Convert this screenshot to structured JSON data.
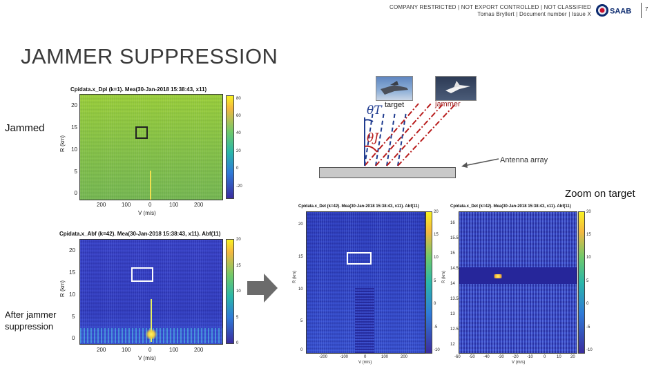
{
  "header": {
    "line1": "COMPANY RESTRICTED | NOT EXPORT CONTROLLED | NOT CLASSIFIED",
    "line2": "Tomas Bryllert | Document number | Issue X",
    "brand": "SAAB",
    "page_number": "7"
  },
  "title": "JAMMER SUPPRESSION",
  "labels": {
    "jammed": "Jammed",
    "after": "After jammer suppression",
    "zoom": "Zoom on target"
  },
  "geometry_diagram": {
    "target_label": "target",
    "jammer_label": "jammer",
    "theta_t": "θT",
    "theta_j": "θJ",
    "antenna_label": "Antenna array"
  },
  "plots": {
    "dpl": {
      "title": "Cpidata.x_Dpl (k=1).   Mea(30-Jan-2018 15:38:43, x11)",
      "ylabel": "R (km)",
      "xlabel": "V (m/s)",
      "yticks": [
        "20",
        "15",
        "10",
        "5",
        "0"
      ],
      "xticks": [
        "200",
        "100",
        "0",
        "100",
        "200"
      ],
      "cticks": [
        "60",
        "40",
        "20",
        "0",
        "-20"
      ],
      "cticks_top": "80"
    },
    "abf": {
      "title": "Cpidata.x_Abf (k=42).   Mea(30-Jan-2018 15:38:43, x11). Abf(11)",
      "ylabel": "R (km)",
      "xlabel": "V (m/s)",
      "yticks": [
        "20",
        "15",
        "10",
        "5",
        "0"
      ],
      "xticks": [
        "200",
        "100",
        "0",
        "100",
        "200"
      ],
      "cticks": [
        "20",
        "15",
        "10",
        "5",
        "0"
      ]
    },
    "det1": {
      "title": "Cpidata.x_Det (k=42).  Mea(30-Jan-2018 15:38:43, x11). Abf(11)",
      "ylabel": "R (km)",
      "xlabel": "V (m/s)",
      "yticks": [
        "20",
        "15",
        "10",
        "5",
        "0"
      ],
      "xticks": [
        "-200",
        "-100",
        "0",
        "100",
        "200"
      ],
      "cticks": [
        "20",
        "15",
        "10",
        "5",
        "0",
        "-5",
        "-10"
      ]
    },
    "det2": {
      "title": "Cpidata.x_Det (k=42).  Mea(30-Jan-2018 15:38:43, x11). Abf(11)",
      "ylabel": "R (km)",
      "xlabel": "V (m/s)",
      "yticks": [
        "16",
        "15.5",
        "15",
        "14.5",
        "14",
        "13.5",
        "13",
        "12.5",
        "12"
      ],
      "xticks": [
        "-60",
        "-50",
        "-40",
        "-30",
        "-20",
        "-10",
        "0",
        "10",
        "20"
      ],
      "cticks": [
        "20",
        "15",
        "10",
        "5",
        "0",
        "-5",
        "-10"
      ]
    }
  }
}
